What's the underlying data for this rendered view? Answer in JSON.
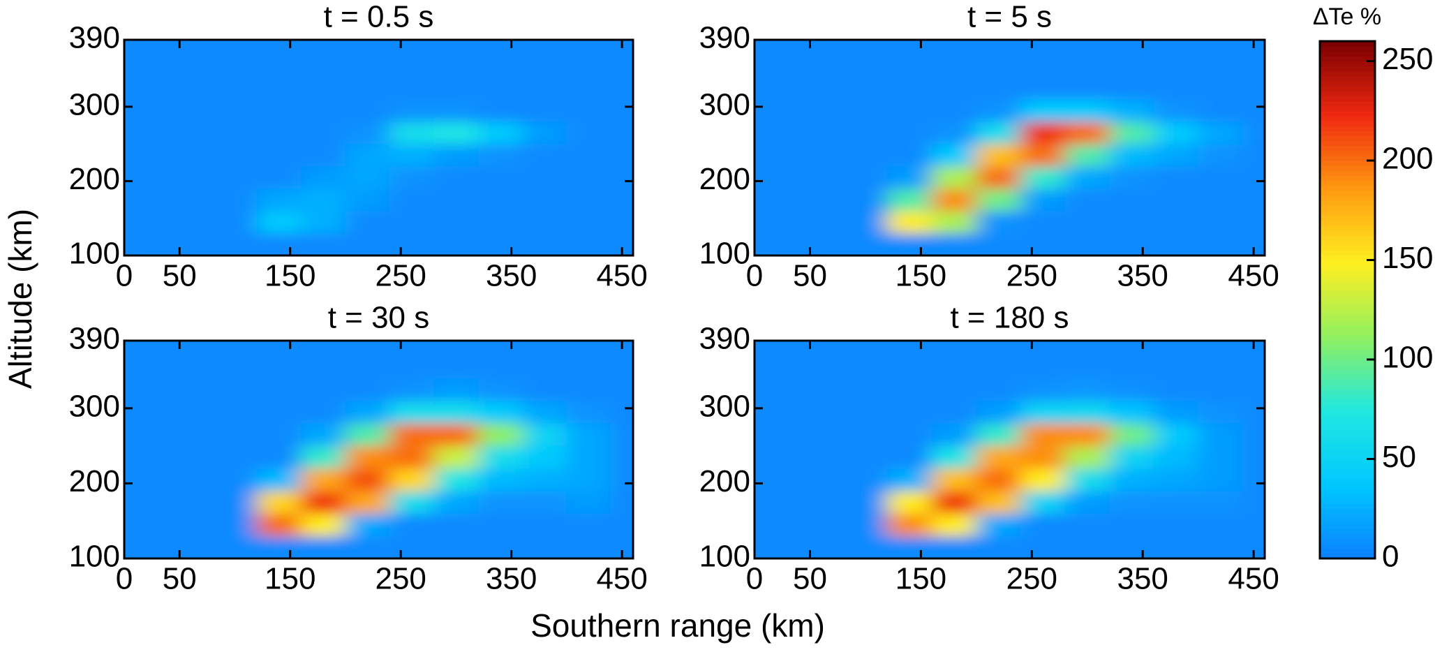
{
  "chart_data": {
    "type": "heatmap",
    "xlabel": "Southern range (km)",
    "ylabel": "Altitude (km)",
    "xlim": [
      0,
      460
    ],
    "ylim": [
      100,
      390
    ],
    "xticks": [
      0,
      50,
      150,
      250,
      350,
      450
    ],
    "yticks": [
      100,
      200,
      300,
      390
    ],
    "x": [
      20,
      60,
      100,
      140,
      180,
      220,
      260,
      300,
      340,
      380,
      420,
      460
    ],
    "y": [
      115,
      145,
      175,
      205,
      235,
      265,
      295,
      325,
      355,
      385
    ],
    "colorbar": {
      "label": "ΔTe %",
      "clim": [
        0,
        260
      ],
      "ticks": [
        0,
        50,
        100,
        150,
        200,
        250
      ],
      "colors": [
        "#0a80ff",
        "#00c8ff",
        "#20e8e0",
        "#90f060",
        "#ffef20",
        "#ff9a10",
        "#f02810",
        "#7a0000"
      ]
    },
    "panels": [
      {
        "title": "t = 0.5 s",
        "z": [
          [
            5,
            5,
            5,
            5,
            5,
            5,
            5,
            5,
            5,
            5,
            5,
            5
          ],
          [
            5,
            5,
            5,
            40,
            25,
            5,
            5,
            5,
            5,
            5,
            5,
            5
          ],
          [
            5,
            5,
            5,
            20,
            25,
            15,
            5,
            5,
            5,
            5,
            5,
            5
          ],
          [
            5,
            5,
            5,
            5,
            15,
            20,
            10,
            5,
            5,
            5,
            5,
            5
          ],
          [
            5,
            5,
            5,
            5,
            5,
            20,
            25,
            15,
            10,
            5,
            5,
            5
          ],
          [
            5,
            5,
            5,
            5,
            5,
            10,
            60,
            70,
            40,
            15,
            5,
            5
          ],
          [
            5,
            5,
            5,
            5,
            5,
            5,
            10,
            10,
            5,
            5,
            5,
            5
          ],
          [
            5,
            5,
            5,
            5,
            5,
            5,
            5,
            5,
            5,
            5,
            5,
            5
          ],
          [
            5,
            5,
            5,
            5,
            5,
            5,
            5,
            5,
            5,
            5,
            5,
            5
          ],
          [
            5,
            5,
            5,
            5,
            5,
            5,
            5,
            5,
            5,
            5,
            5,
            5
          ]
        ]
      },
      {
        "title": "t = 5 s",
        "z": [
          [
            5,
            5,
            5,
            5,
            5,
            5,
            5,
            5,
            5,
            5,
            5,
            5
          ],
          [
            5,
            5,
            5,
            150,
            120,
            10,
            5,
            5,
            5,
            5,
            5,
            5
          ],
          [
            5,
            5,
            5,
            90,
            190,
            100,
            15,
            5,
            5,
            5,
            5,
            5
          ],
          [
            5,
            5,
            5,
            15,
            120,
            200,
            80,
            20,
            10,
            5,
            5,
            5
          ],
          [
            5,
            5,
            5,
            5,
            40,
            170,
            200,
            90,
            30,
            20,
            10,
            5
          ],
          [
            5,
            5,
            5,
            5,
            10,
            60,
            220,
            200,
            90,
            40,
            20,
            5
          ],
          [
            5,
            5,
            5,
            5,
            5,
            10,
            40,
            40,
            25,
            10,
            5,
            5
          ],
          [
            5,
            5,
            5,
            5,
            5,
            5,
            5,
            5,
            5,
            5,
            5,
            5
          ],
          [
            5,
            5,
            5,
            5,
            5,
            5,
            5,
            5,
            5,
            5,
            5,
            5
          ],
          [
            5,
            5,
            5,
            5,
            5,
            5,
            5,
            5,
            5,
            5,
            5,
            5
          ]
        ]
      },
      {
        "title": "t = 30 s",
        "z": [
          [
            5,
            5,
            5,
            5,
            5,
            5,
            5,
            5,
            5,
            5,
            5,
            5
          ],
          [
            5,
            5,
            5,
            200,
            150,
            20,
            5,
            5,
            5,
            5,
            5,
            5
          ],
          [
            5,
            5,
            5,
            160,
            220,
            180,
            60,
            20,
            10,
            10,
            15,
            5
          ],
          [
            5,
            5,
            5,
            30,
            180,
            210,
            160,
            70,
            30,
            25,
            20,
            5
          ],
          [
            5,
            5,
            5,
            5,
            80,
            190,
            200,
            130,
            60,
            40,
            20,
            5
          ],
          [
            5,
            5,
            5,
            5,
            20,
            90,
            200,
            200,
            110,
            50,
            20,
            5
          ],
          [
            5,
            5,
            5,
            5,
            5,
            20,
            60,
            60,
            40,
            20,
            10,
            5
          ],
          [
            5,
            5,
            5,
            5,
            5,
            5,
            10,
            15,
            10,
            5,
            5,
            5
          ],
          [
            5,
            5,
            5,
            5,
            5,
            5,
            5,
            5,
            5,
            5,
            5,
            5
          ],
          [
            5,
            5,
            5,
            5,
            5,
            5,
            5,
            5,
            5,
            5,
            5,
            5
          ]
        ]
      },
      {
        "title": "t = 180 s",
        "z": [
          [
            5,
            5,
            5,
            5,
            5,
            5,
            5,
            5,
            5,
            5,
            5,
            5
          ],
          [
            5,
            5,
            5,
            190,
            150,
            20,
            5,
            5,
            5,
            5,
            5,
            5
          ],
          [
            5,
            5,
            5,
            150,
            220,
            170,
            50,
            15,
            10,
            10,
            10,
            5
          ],
          [
            5,
            5,
            5,
            25,
            170,
            200,
            150,
            60,
            25,
            20,
            15,
            5
          ],
          [
            5,
            5,
            5,
            5,
            70,
            180,
            190,
            120,
            50,
            30,
            15,
            5
          ],
          [
            5,
            5,
            5,
            5,
            15,
            80,
            190,
            190,
            100,
            40,
            15,
            5
          ],
          [
            5,
            5,
            5,
            5,
            5,
            15,
            50,
            55,
            35,
            15,
            10,
            5
          ],
          [
            5,
            5,
            5,
            5,
            5,
            5,
            10,
            12,
            8,
            5,
            5,
            5
          ],
          [
            5,
            5,
            5,
            5,
            5,
            5,
            5,
            5,
            5,
            5,
            5,
            5
          ],
          [
            5,
            5,
            5,
            5,
            5,
            5,
            5,
            5,
            5,
            5,
            5,
            5
          ]
        ]
      }
    ]
  }
}
